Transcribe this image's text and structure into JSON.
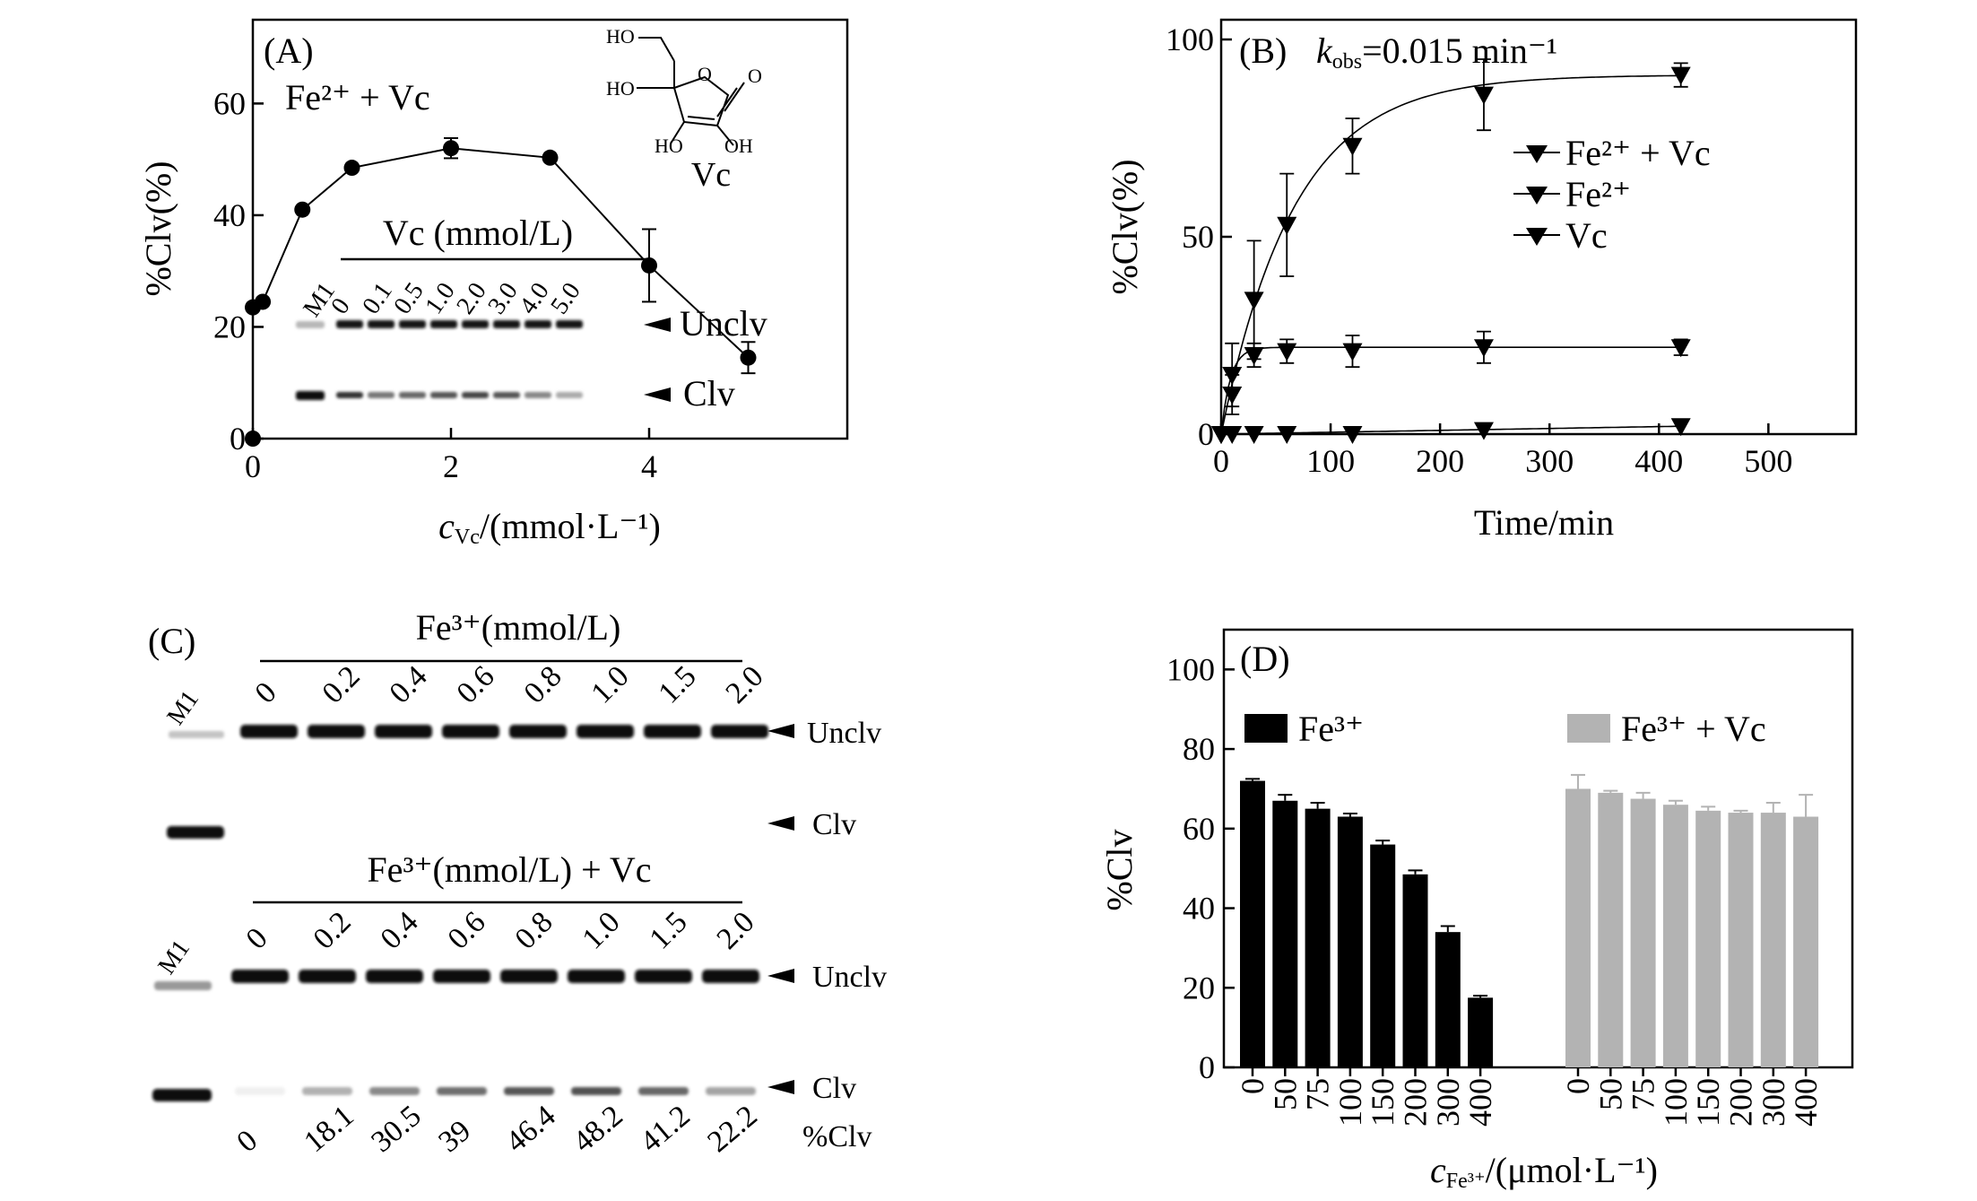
{
  "colors": {
    "black": "#000000",
    "gray": "#b3b3b3",
    "band": "#111111"
  },
  "panel_a": {
    "label": "(A)",
    "condition": "Fe²⁺ + Vc",
    "ylabel": "%Clv(%)",
    "xlabel_sym": "c",
    "xlabel_sub": "Vc",
    "xlabel_rest": "/(mmol·L⁻¹)",
    "molecule_name": "Vc",
    "molecule_atoms": [
      "HO",
      "HO",
      "O",
      "O",
      "HO",
      "OH"
    ],
    "gel_title": "Vc (mmol/L)",
    "gel_marker": "M1",
    "gel_lanes": [
      "0",
      "0.1",
      "0.5",
      "1.0",
      "2.0",
      "3.0",
      "4.0",
      "5.0"
    ],
    "gel_unclv": "Unclv",
    "gel_clv": "Clv"
  },
  "panel_b": {
    "label": "(B)",
    "kobs_k": "k",
    "kobs_sub": "obs",
    "kobs_val": "=0.015 min⁻¹",
    "ylabel": "%Clv(%)",
    "xlabel": "Time/min",
    "legend": [
      "Fe²⁺ + Vc",
      "Fe²⁺",
      "Vc"
    ]
  },
  "panel_c": {
    "label": "(C)",
    "top_title": "Fe³⁺(mmol/L)",
    "bottom_title": "Fe³⁺(mmol/L) + Vc",
    "marker": "M1",
    "lanes": [
      "0",
      "0.2",
      "0.4",
      "0.6",
      "0.8",
      "1.0",
      "1.5",
      "2.0"
    ],
    "unclv": "Unclv",
    "clv": "Clv",
    "pct_values": [
      "0",
      "18.1",
      "30.5",
      "39",
      "46.4",
      "48.2",
      "41.2",
      "22.2"
    ],
    "pct_label": "%Clv"
  },
  "panel_d": {
    "label": "(D)",
    "ylabel": "%Clv",
    "xlabel_sym": "c",
    "xlabel_sub": "Fe³⁺",
    "xlabel_rest": "/(μmol·L⁻¹)",
    "legend": [
      "Fe³⁺",
      "Fe³⁺ + Vc"
    ]
  },
  "chart_data": [
    {
      "panel": "A",
      "type": "line",
      "xlabel": "cVc/(mmol·L⁻¹)",
      "ylabel": "%Clv(%)",
      "xlim": [
        0,
        6.0
      ],
      "ylim": [
        0,
        75
      ],
      "xticks": [
        "0",
        "2",
        "4"
      ],
      "yticks": [
        "0",
        "20",
        "40",
        "60"
      ],
      "series": [
        {
          "x": [
            0,
            0,
            0.1,
            0.5,
            1.0,
            2.0,
            3.0,
            4.0,
            5.0
          ],
          "y": [
            0,
            23.5,
            24.5,
            41,
            48.5,
            52,
            50.3,
            31,
            14.5
          ],
          "err": [
            0,
            0,
            0,
            0,
            0,
            1.8,
            0,
            6.5,
            2.8
          ]
        }
      ]
    },
    {
      "panel": "B",
      "type": "line",
      "xlabel": "Time/min",
      "ylabel": "%Clv(%)",
      "xlim": [
        0,
        580
      ],
      "ylim": [
        0,
        105
      ],
      "xticks": [
        "0",
        "100",
        "200",
        "300",
        "400",
        "500"
      ],
      "yticks": [
        "0",
        "50",
        "100"
      ],
      "series": [
        {
          "name": "Fe²⁺ + Vc",
          "x": [
            0,
            10,
            30,
            60,
            120,
            240,
            420
          ],
          "y": [
            0,
            10,
            34,
            53,
            73,
            86,
            91
          ],
          "err": [
            0,
            5,
            15,
            13,
            7,
            9,
            3
          ]
        },
        {
          "name": "Fe²⁺",
          "x": [
            0,
            10,
            30,
            60,
            120,
            240,
            420
          ],
          "y": [
            0,
            15,
            20,
            21,
            21,
            22,
            22
          ],
          "err": [
            0,
            8,
            3,
            3,
            4,
            4,
            2
          ]
        },
        {
          "name": "Vc",
          "x": [
            0,
            10,
            30,
            60,
            120,
            240,
            420
          ],
          "y": [
            0,
            0,
            0,
            0,
            0,
            1,
            2
          ],
          "err": [
            0,
            0,
            0,
            0,
            0,
            0,
            0
          ]
        }
      ]
    },
    {
      "panel": "C",
      "type": "table",
      "categories": [
        "0",
        "0.2",
        "0.4",
        "0.6",
        "0.8",
        "1.0",
        "1.5",
        "2.0"
      ],
      "values": [
        0,
        18.1,
        30.5,
        39,
        46.4,
        48.2,
        41.2,
        22.2
      ]
    },
    {
      "panel": "D",
      "type": "bar",
      "xlabel": "cFe³⁺/(μmol·L⁻¹)",
      "ylabel": "%Clv",
      "ylim": [
        0,
        110
      ],
      "yticks": [
        "0",
        "20",
        "40",
        "60",
        "80",
        "100"
      ],
      "categories": [
        "0",
        "50",
        "75",
        "100",
        "150",
        "200",
        "300",
        "400"
      ],
      "series": [
        {
          "name": "Fe³⁺",
          "values": [
            72,
            67,
            65,
            63,
            56,
            48.5,
            34,
            17.5
          ],
          "err": [
            0.5,
            1.5,
            1.5,
            0.8,
            1.0,
            1.0,
            1.5,
            0.5
          ]
        },
        {
          "name": "Fe³⁺ + Vc",
          "values": [
            70,
            69,
            67.5,
            66,
            64.5,
            64,
            64,
            63
          ],
          "err": [
            3.5,
            0.5,
            1.5,
            1.0,
            1.0,
            0.5,
            2.5,
            5.5
          ]
        }
      ]
    }
  ]
}
